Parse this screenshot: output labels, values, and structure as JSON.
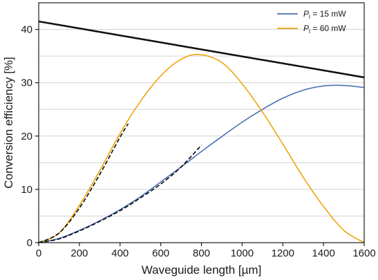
{
  "chart_data": {
    "type": "line",
    "xlabel": "Waveguide length [µm]",
    "ylabel": "Conversion efficiency [%]",
    "xlim": [
      0,
      1600
    ],
    "ylim": [
      0,
      45
    ],
    "xticks": [
      0,
      200,
      400,
      600,
      800,
      1000,
      1200,
      1400,
      1600
    ],
    "yticks": [
      0,
      10,
      20,
      30,
      40
    ],
    "grid": "horizontal",
    "legend": {
      "placement": "top-right",
      "entries": [
        {
          "italic": "P",
          "sub": "i",
          "text": " = 15 mW",
          "color": "#4a6fb5"
        },
        {
          "italic": "P",
          "sub": "i",
          "text": " = 60 mW",
          "color": "#f0a30a"
        }
      ]
    },
    "series": [
      {
        "key": "blue",
        "style": "solid",
        "color": "#4a6fb5",
        "x": [
          0,
          100,
          200,
          300,
          400,
          500,
          600,
          700,
          800,
          900,
          1000,
          1100,
          1200,
          1300,
          1400,
          1500,
          1600
        ],
        "y": [
          0,
          0.8,
          2.3,
          4.1,
          6.2,
          8.6,
          11.4,
          14.2,
          17.1,
          19.9,
          22.6,
          25.0,
          27.1,
          28.6,
          29.4,
          29.5,
          29.1
        ]
      },
      {
        "key": "orange",
        "style": "solid",
        "color": "#f0a30a",
        "x": [
          0,
          100,
          200,
          300,
          400,
          500,
          600,
          700,
          790,
          900,
          1000,
          1100,
          1200,
          1300,
          1400,
          1500,
          1600
        ],
        "y": [
          0,
          1.8,
          7.0,
          13.5,
          20.5,
          26.5,
          31.3,
          34.4,
          35.3,
          33.8,
          29.8,
          24.5,
          18.5,
          12.3,
          6.8,
          2.3,
          0
        ]
      },
      {
        "key": "black-line",
        "style": "solid",
        "color": "#111111",
        "x": [
          0,
          1600
        ],
        "y": [
          41.5,
          31.0
        ]
      },
      {
        "key": "blue-fit",
        "style": "dashed",
        "color": "#111111",
        "x": [
          0,
          100,
          200,
          300,
          400,
          500,
          600,
          700,
          800
        ],
        "y": [
          0,
          0.7,
          2.2,
          4.0,
          6.0,
          8.4,
          11.0,
          14.2,
          18.3
        ]
      },
      {
        "key": "orange-fit",
        "style": "dashed",
        "color": "#111111",
        "x": [
          0,
          100,
          200,
          300,
          400,
          440
        ],
        "y": [
          0,
          1.8,
          6.5,
          12.8,
          19.8,
          22.3
        ]
      }
    ]
  }
}
